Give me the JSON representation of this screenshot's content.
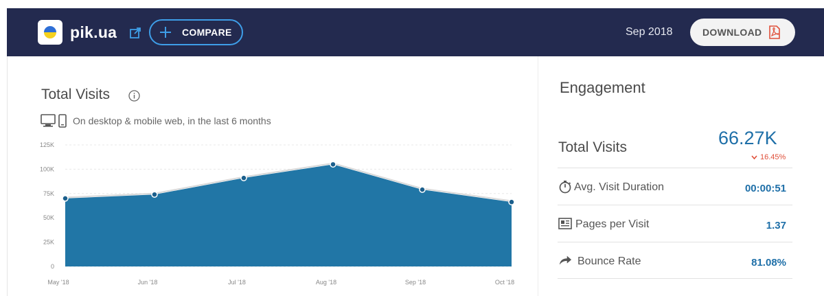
{
  "header": {
    "site": "pik.ua",
    "compare_label": "COMPARE",
    "date": "Sep 2018",
    "download_label": "DOWNLOAD",
    "colors": {
      "bar": "#232a4f",
      "accent": "#3e9ee8",
      "pdf": "#e0503a"
    },
    "icons": [
      "ukraine-flag-icon",
      "external-link-icon",
      "plus-icon",
      "pdf-icon"
    ]
  },
  "total_visits": {
    "title": "Total Visits",
    "subtitle": "On desktop & mobile web, in the last 6 months"
  },
  "chart_data": {
    "type": "area",
    "categories": [
      "May '18",
      "Jun '18",
      "Jul '18",
      "Aug '18",
      "Sep '18",
      "Oct '18"
    ],
    "values": [
      70000,
      74000,
      91000,
      105000,
      79000,
      66270
    ],
    "y_ticks": [
      "125K",
      "100K",
      "75K",
      "50K",
      "25K",
      "0"
    ],
    "ylim": [
      0,
      125000
    ],
    "grid": true,
    "color": "#2176a6"
  },
  "engagement": {
    "title": "Engagement",
    "total_visits_label": "Total Visits",
    "total_visits_value": "66.27K",
    "total_visits_change": "16.45%",
    "rows": [
      {
        "icon": "stopwatch-icon",
        "label": "Avg. Visit Duration",
        "value": "00:00:51"
      },
      {
        "icon": "pages-icon",
        "label": "Pages per Visit",
        "value": "1.37"
      },
      {
        "icon": "share-arrow-icon",
        "label": "Bounce Rate",
        "value": "81.08%"
      }
    ]
  }
}
